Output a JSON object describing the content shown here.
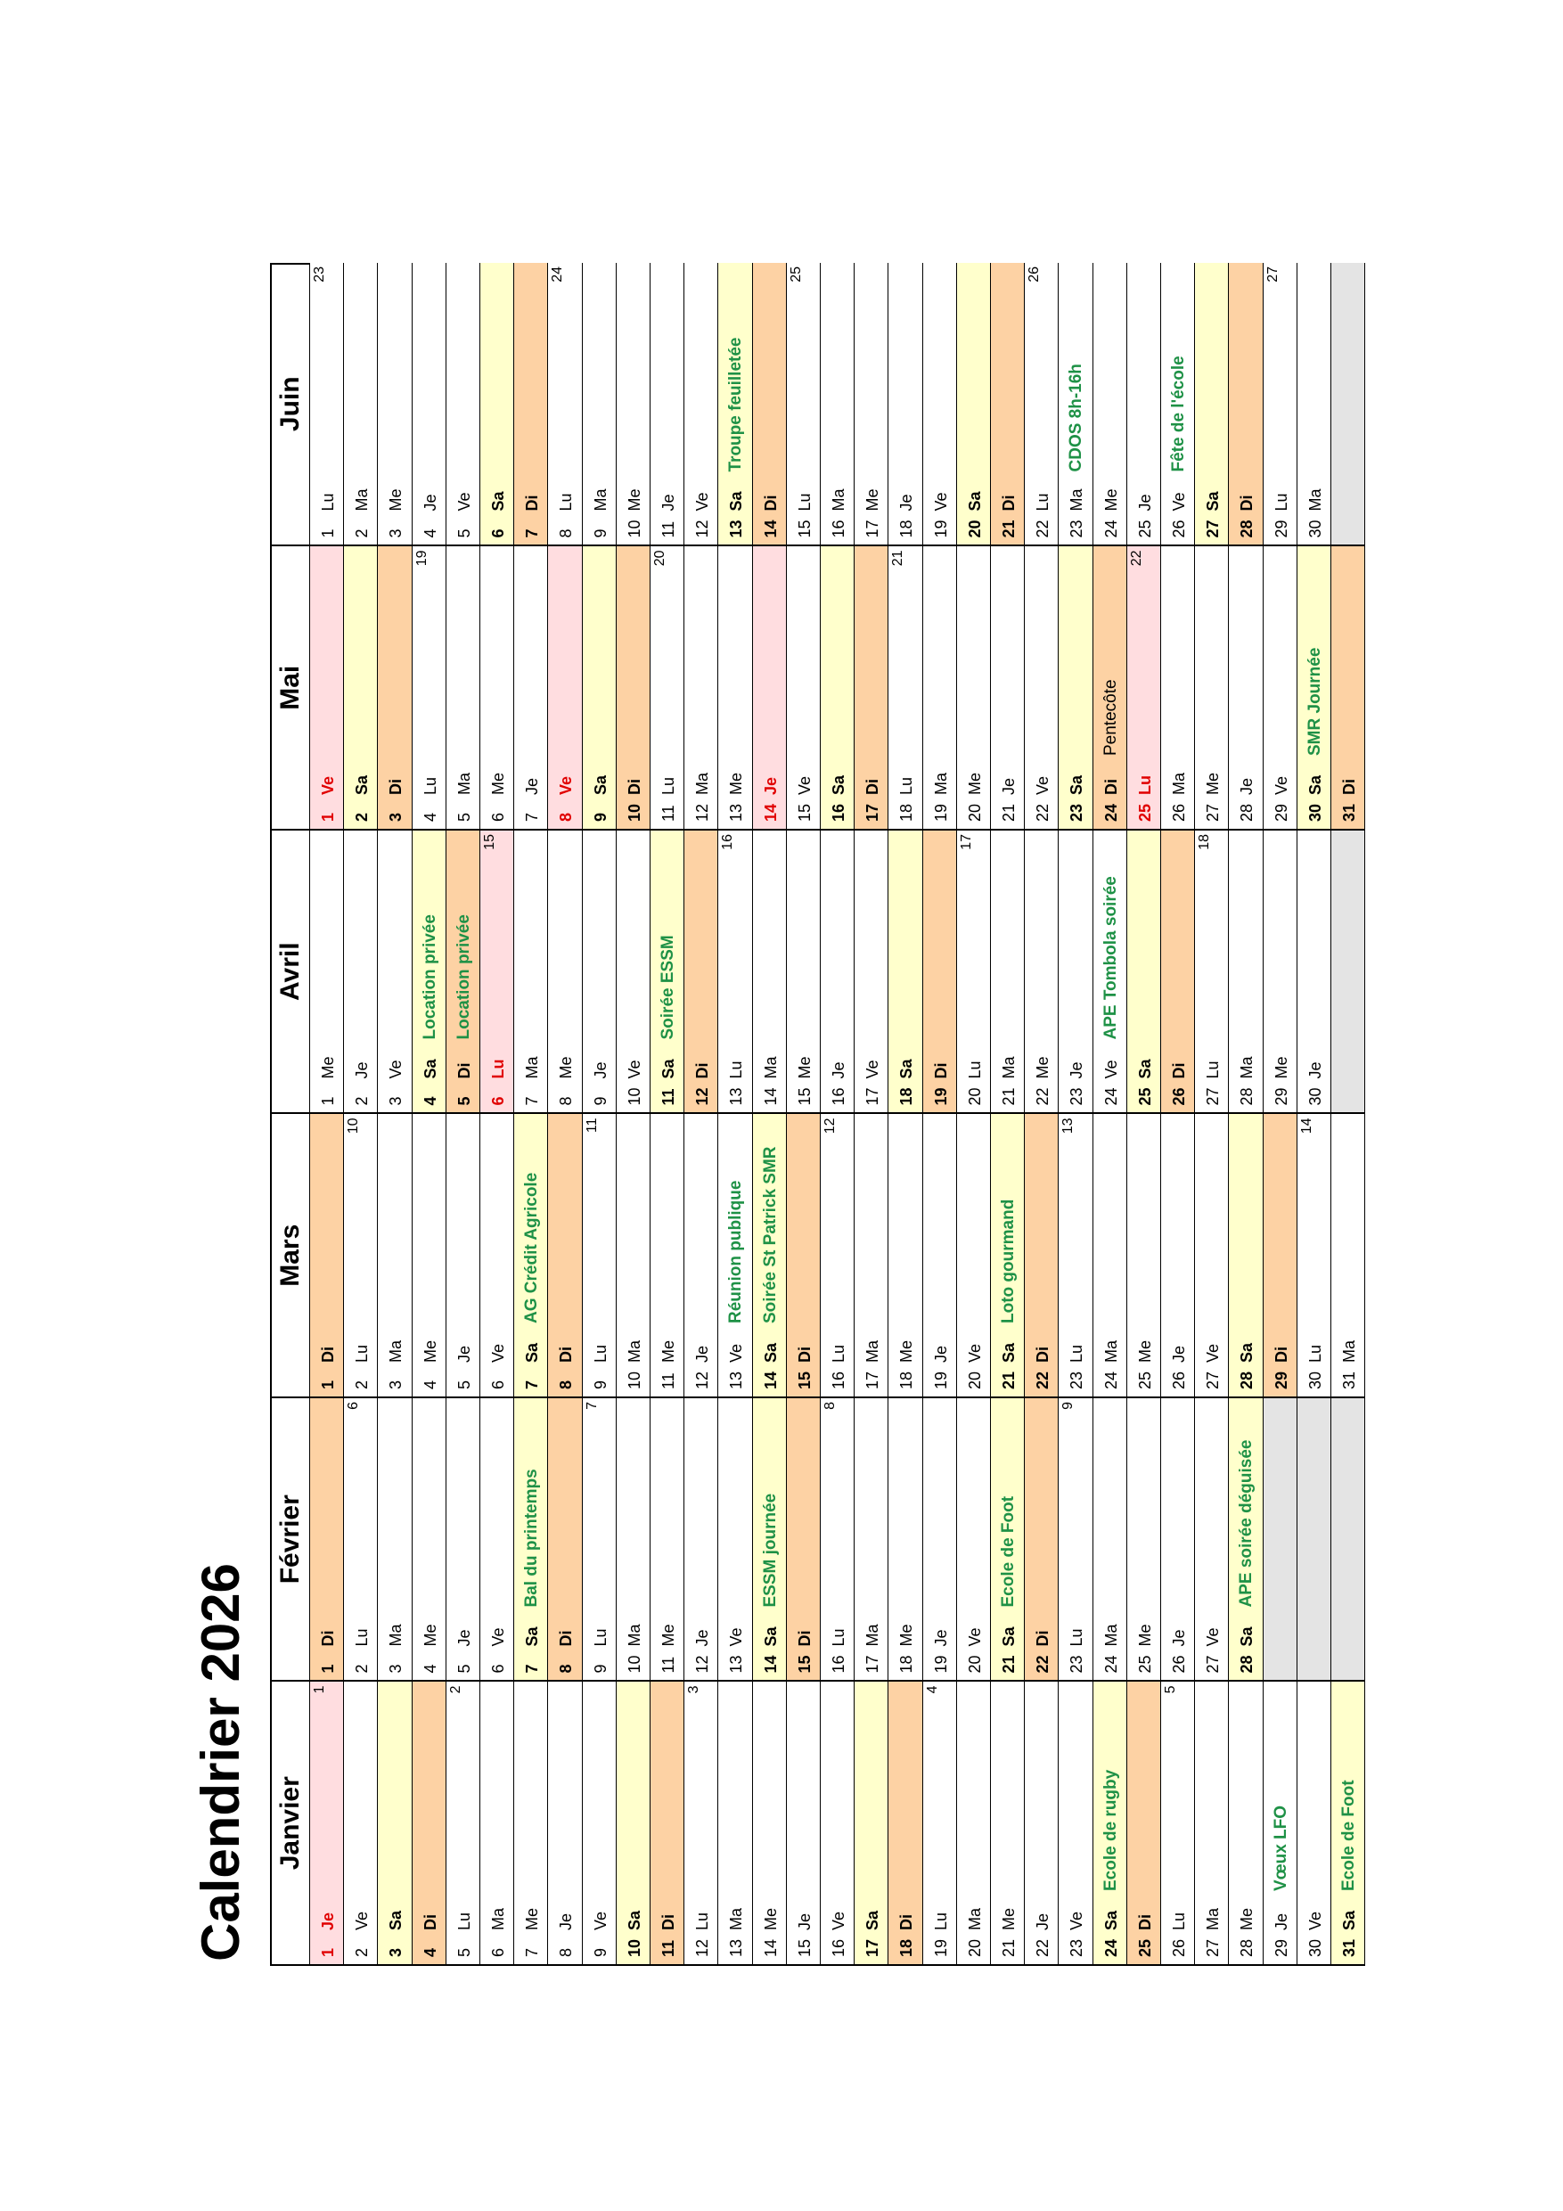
{
  "title": "Calendrier 2026",
  "colors": {
    "sat": "#ffffcc",
    "sun": "#fdd2a4",
    "hol": "#ffdde0",
    "hol_text": "#e00000",
    "event": "#1e9146",
    "empty": "#e4e4e4"
  },
  "months": [
    {
      "name": "Janvier",
      "days": [
        {
          "n": 1,
          "d": "Je",
          "k": "hol",
          "w": 1
        },
        {
          "n": 2,
          "d": "Ve"
        },
        {
          "n": 3,
          "d": "Sa",
          "k": "sat"
        },
        {
          "n": 4,
          "d": "Di",
          "k": "sun"
        },
        {
          "n": 5,
          "d": "Lu",
          "w": 2
        },
        {
          "n": 6,
          "d": "Ma"
        },
        {
          "n": 7,
          "d": "Me"
        },
        {
          "n": 8,
          "d": "Je"
        },
        {
          "n": 9,
          "d": "Ve"
        },
        {
          "n": 10,
          "d": "Sa",
          "k": "sat"
        },
        {
          "n": 11,
          "d": "Di",
          "k": "sun"
        },
        {
          "n": 12,
          "d": "Lu",
          "w": 3
        },
        {
          "n": 13,
          "d": "Ma"
        },
        {
          "n": 14,
          "d": "Me"
        },
        {
          "n": 15,
          "d": "Je"
        },
        {
          "n": 16,
          "d": "Ve"
        },
        {
          "n": 17,
          "d": "Sa",
          "k": "sat"
        },
        {
          "n": 18,
          "d": "Di",
          "k": "sun"
        },
        {
          "n": 19,
          "d": "Lu",
          "w": 4
        },
        {
          "n": 20,
          "d": "Ma"
        },
        {
          "n": 21,
          "d": "Me"
        },
        {
          "n": 22,
          "d": "Je"
        },
        {
          "n": 23,
          "d": "Ve"
        },
        {
          "n": 24,
          "d": "Sa",
          "k": "sat",
          "e": "Ecole de rugby"
        },
        {
          "n": 25,
          "d": "Di",
          "k": "sun"
        },
        {
          "n": 26,
          "d": "Lu",
          "w": 5
        },
        {
          "n": 27,
          "d": "Ma"
        },
        {
          "n": 28,
          "d": "Me"
        },
        {
          "n": 29,
          "d": "Je",
          "e": "Vœux LFO"
        },
        {
          "n": 30,
          "d": "Ve"
        },
        {
          "n": 31,
          "d": "Sa",
          "k": "sat",
          "e": "Ecole de Foot"
        }
      ]
    },
    {
      "name": "Février",
      "days": [
        {
          "n": 1,
          "d": "Di",
          "k": "sun"
        },
        {
          "n": 2,
          "d": "Lu",
          "w": 6
        },
        {
          "n": 3,
          "d": "Ma"
        },
        {
          "n": 4,
          "d": "Me"
        },
        {
          "n": 5,
          "d": "Je"
        },
        {
          "n": 6,
          "d": "Ve"
        },
        {
          "n": 7,
          "d": "Sa",
          "k": "sat",
          "e": "Bal du printemps"
        },
        {
          "n": 8,
          "d": "Di",
          "k": "sun"
        },
        {
          "n": 9,
          "d": "Lu",
          "w": 7
        },
        {
          "n": 10,
          "d": "Ma"
        },
        {
          "n": 11,
          "d": "Me"
        },
        {
          "n": 12,
          "d": "Je"
        },
        {
          "n": 13,
          "d": "Ve"
        },
        {
          "n": 14,
          "d": "Sa",
          "k": "sat",
          "e": "ESSM journée"
        },
        {
          "n": 15,
          "d": "Di",
          "k": "sun"
        },
        {
          "n": 16,
          "d": "Lu",
          "w": 8
        },
        {
          "n": 17,
          "d": "Ma"
        },
        {
          "n": 18,
          "d": "Me"
        },
        {
          "n": 19,
          "d": "Je"
        },
        {
          "n": 20,
          "d": "Ve"
        },
        {
          "n": 21,
          "d": "Sa",
          "k": "sat",
          "e": "Ecole de Foot"
        },
        {
          "n": 22,
          "d": "Di",
          "k": "sun"
        },
        {
          "n": 23,
          "d": "Lu",
          "w": 9
        },
        {
          "n": 24,
          "d": "Ma"
        },
        {
          "n": 25,
          "d": "Me"
        },
        {
          "n": 26,
          "d": "Je"
        },
        {
          "n": 27,
          "d": "Ve"
        },
        {
          "n": 28,
          "d": "Sa",
          "k": "sat",
          "e": "APE soirée déguisée"
        }
      ]
    },
    {
      "name": "Mars",
      "days": [
        {
          "n": 1,
          "d": "Di",
          "k": "sun"
        },
        {
          "n": 2,
          "d": "Lu",
          "w": 10
        },
        {
          "n": 3,
          "d": "Ma"
        },
        {
          "n": 4,
          "d": "Me"
        },
        {
          "n": 5,
          "d": "Je"
        },
        {
          "n": 6,
          "d": "Ve"
        },
        {
          "n": 7,
          "d": "Sa",
          "k": "sat",
          "e": "AG Crédit Agricole"
        },
        {
          "n": 8,
          "d": "Di",
          "k": "sun"
        },
        {
          "n": 9,
          "d": "Lu",
          "w": 11
        },
        {
          "n": 10,
          "d": "Ma"
        },
        {
          "n": 11,
          "d": "Me"
        },
        {
          "n": 12,
          "d": "Je"
        },
        {
          "n": 13,
          "d": "Ve",
          "e": "Réunion publique"
        },
        {
          "n": 14,
          "d": "Sa",
          "k": "sat",
          "e": "Soirée St Patrick SMR"
        },
        {
          "n": 15,
          "d": "Di",
          "k": "sun"
        },
        {
          "n": 16,
          "d": "Lu",
          "w": 12
        },
        {
          "n": 17,
          "d": "Ma"
        },
        {
          "n": 18,
          "d": "Me"
        },
        {
          "n": 19,
          "d": "Je"
        },
        {
          "n": 20,
          "d": "Ve"
        },
        {
          "n": 21,
          "d": "Sa",
          "k": "sat",
          "e": "Loto gourmand"
        },
        {
          "n": 22,
          "d": "Di",
          "k": "sun"
        },
        {
          "n": 23,
          "d": "Lu",
          "w": 13
        },
        {
          "n": 24,
          "d": "Ma"
        },
        {
          "n": 25,
          "d": "Me"
        },
        {
          "n": 26,
          "d": "Je"
        },
        {
          "n": 27,
          "d": "Ve"
        },
        {
          "n": 28,
          "d": "Sa",
          "k": "sat"
        },
        {
          "n": 29,
          "d": "Di",
          "k": "sun"
        },
        {
          "n": 30,
          "d": "Lu",
          "w": 14
        },
        {
          "n": 31,
          "d": "Ma"
        }
      ]
    },
    {
      "name": "Avril",
      "days": [
        {
          "n": 1,
          "d": "Me"
        },
        {
          "n": 2,
          "d": "Je"
        },
        {
          "n": 3,
          "d": "Ve"
        },
        {
          "n": 4,
          "d": "Sa",
          "k": "sat",
          "e": "Location privée"
        },
        {
          "n": 5,
          "d": "Di",
          "k": "sun",
          "e": "Location privée"
        },
        {
          "n": 6,
          "d": "Lu",
          "k": "hol",
          "w": 15
        },
        {
          "n": 7,
          "d": "Ma"
        },
        {
          "n": 8,
          "d": "Me"
        },
        {
          "n": 9,
          "d": "Je"
        },
        {
          "n": 10,
          "d": "Ve"
        },
        {
          "n": 11,
          "d": "Sa",
          "k": "sat",
          "e": "Soirée ESSM"
        },
        {
          "n": 12,
          "d": "Di",
          "k": "sun"
        },
        {
          "n": 13,
          "d": "Lu",
          "w": 16
        },
        {
          "n": 14,
          "d": "Ma"
        },
        {
          "n": 15,
          "d": "Me"
        },
        {
          "n": 16,
          "d": "Je"
        },
        {
          "n": 17,
          "d": "Ve"
        },
        {
          "n": 18,
          "d": "Sa",
          "k": "sat"
        },
        {
          "n": 19,
          "d": "Di",
          "k": "sun"
        },
        {
          "n": 20,
          "d": "Lu",
          "w": 17
        },
        {
          "n": 21,
          "d": "Ma"
        },
        {
          "n": 22,
          "d": "Me"
        },
        {
          "n": 23,
          "d": "Je"
        },
        {
          "n": 24,
          "d": "Ve",
          "e": "APE Tombola soirée"
        },
        {
          "n": 25,
          "d": "Sa",
          "k": "sat"
        },
        {
          "n": 26,
          "d": "Di",
          "k": "sun"
        },
        {
          "n": 27,
          "d": "Lu",
          "w": 18
        },
        {
          "n": 28,
          "d": "Ma"
        },
        {
          "n": 29,
          "d": "Me"
        },
        {
          "n": 30,
          "d": "Je"
        }
      ]
    },
    {
      "name": "Mai",
      "days": [
        {
          "n": 1,
          "d": "Ve",
          "k": "hol"
        },
        {
          "n": 2,
          "d": "Sa",
          "k": "sat"
        },
        {
          "n": 3,
          "d": "Di",
          "k": "sun"
        },
        {
          "n": 4,
          "d": "Lu",
          "w": 19
        },
        {
          "n": 5,
          "d": "Ma"
        },
        {
          "n": 6,
          "d": "Me"
        },
        {
          "n": 7,
          "d": "Je"
        },
        {
          "n": 8,
          "d": "Ve",
          "k": "hol"
        },
        {
          "n": 9,
          "d": "Sa",
          "k": "sat"
        },
        {
          "n": 10,
          "d": "Di",
          "k": "sun"
        },
        {
          "n": 11,
          "d": "Lu",
          "w": 20
        },
        {
          "n": 12,
          "d": "Ma"
        },
        {
          "n": 13,
          "d": "Me"
        },
        {
          "n": 14,
          "d": "Je",
          "k": "hol"
        },
        {
          "n": 15,
          "d": "Ve"
        },
        {
          "n": 16,
          "d": "Sa",
          "k": "sat"
        },
        {
          "n": 17,
          "d": "Di",
          "k": "sun"
        },
        {
          "n": 18,
          "d": "Lu",
          "w": 21
        },
        {
          "n": 19,
          "d": "Ma"
        },
        {
          "n": 20,
          "d": "Me"
        },
        {
          "n": 21,
          "d": "Je"
        },
        {
          "n": 22,
          "d": "Ve"
        },
        {
          "n": 23,
          "d": "Sa",
          "k": "sat"
        },
        {
          "n": 24,
          "d": "Di",
          "k": "sun",
          "e": "Pentecôte",
          "es": "plain"
        },
        {
          "n": 25,
          "d": "Lu",
          "k": "hol",
          "w": 22
        },
        {
          "n": 26,
          "d": "Ma"
        },
        {
          "n": 27,
          "d": "Me"
        },
        {
          "n": 28,
          "d": "Je"
        },
        {
          "n": 29,
          "d": "Ve"
        },
        {
          "n": 30,
          "d": "Sa",
          "k": "sat",
          "e": "SMR Journée"
        },
        {
          "n": 31,
          "d": "Di",
          "k": "sun"
        }
      ]
    },
    {
      "name": "Juin",
      "days": [
        {
          "n": 1,
          "d": "Lu",
          "w": 23
        },
        {
          "n": 2,
          "d": "Ma"
        },
        {
          "n": 3,
          "d": "Me"
        },
        {
          "n": 4,
          "d": "Je"
        },
        {
          "n": 5,
          "d": "Ve"
        },
        {
          "n": 6,
          "d": "Sa",
          "k": "sat"
        },
        {
          "n": 7,
          "d": "Di",
          "k": "sun"
        },
        {
          "n": 8,
          "d": "Lu",
          "w": 24
        },
        {
          "n": 9,
          "d": "Ma"
        },
        {
          "n": 10,
          "d": "Me"
        },
        {
          "n": 11,
          "d": "Je"
        },
        {
          "n": 12,
          "d": "Ve"
        },
        {
          "n": 13,
          "d": "Sa",
          "k": "sat",
          "e": "Troupe feuilletée"
        },
        {
          "n": 14,
          "d": "Di",
          "k": "sun"
        },
        {
          "n": 15,
          "d": "Lu",
          "w": 25
        },
        {
          "n": 16,
          "d": "Ma"
        },
        {
          "n": 17,
          "d": "Me"
        },
        {
          "n": 18,
          "d": "Je"
        },
        {
          "n": 19,
          "d": "Ve"
        },
        {
          "n": 20,
          "d": "Sa",
          "k": "sat"
        },
        {
          "n": 21,
          "d": "Di",
          "k": "sun"
        },
        {
          "n": 22,
          "d": "Lu",
          "w": 26
        },
        {
          "n": 23,
          "d": "Ma",
          "e": "CDOS 8h-16h"
        },
        {
          "n": 24,
          "d": "Me"
        },
        {
          "n": 25,
          "d": "Je"
        },
        {
          "n": 26,
          "d": "Ve",
          "e": "Fête de l'école"
        },
        {
          "n": 27,
          "d": "Sa",
          "k": "sat"
        },
        {
          "n": 28,
          "d": "Di",
          "k": "sun"
        },
        {
          "n": 29,
          "d": "Lu",
          "w": 27
        },
        {
          "n": 30,
          "d": "Ma"
        }
      ]
    }
  ]
}
